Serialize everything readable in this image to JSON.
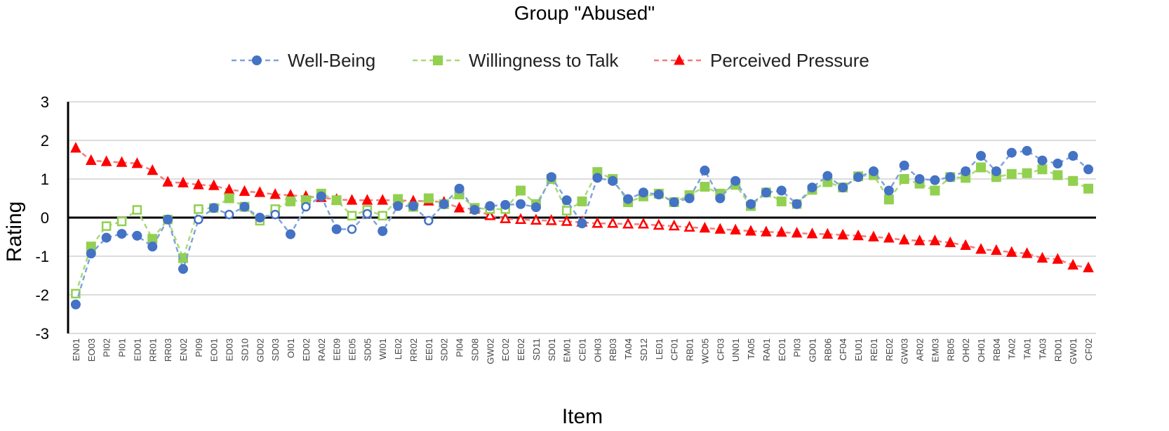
{
  "chart_data": {
    "type": "line",
    "title": "Group \"Abused\"",
    "xlabel": "Item",
    "ylabel": "Rating",
    "ylim": [
      -3,
      3
    ],
    "yticks": [
      3,
      2,
      1,
      0,
      -1,
      -2,
      -3
    ],
    "grid": true,
    "legend": "top-center",
    "categories": [
      "EN01",
      "EO03",
      "PI02",
      "PI01",
      "ED01",
      "RR01",
      "RR03",
      "EN02",
      "PI09",
      "EO01",
      "ED03",
      "SD10",
      "GD02",
      "SD03",
      "OI01",
      "ED02",
      "RA02",
      "EE09",
      "EE05",
      "SD05",
      "WI01",
      "LE02",
      "RR02",
      "EE01",
      "SD02",
      "PI04",
      "SD08",
      "GW02",
      "EC02",
      "EE02",
      "SD11",
      "SD01",
      "EM01",
      "CE01",
      "OH03",
      "RB03",
      "TA04",
      "SD12",
      "LE01",
      "CF01",
      "RB01",
      "WC05",
      "CF03",
      "UN01",
      "TA05",
      "RA01",
      "EC01",
      "PI03",
      "GD01",
      "RB06",
      "CF04",
      "EU01",
      "RE01",
      "RE02",
      "GW03",
      "AR02",
      "EM03",
      "RB05",
      "OH02",
      "OH01",
      "RB04",
      "TA02",
      "TA01",
      "TA03",
      "RD01",
      "GW01",
      "CF02"
    ],
    "series": [
      {
        "name": "Well-Being",
        "color": "#4472C4",
        "marker": "circle",
        "values": [
          -2.25,
          -0.93,
          -0.52,
          -0.42,
          -0.47,
          -0.75,
          -0.05,
          -1.33,
          -0.05,
          0.25,
          0.08,
          0.28,
          0.0,
          0.08,
          -0.43,
          0.28,
          0.55,
          -0.3,
          -0.3,
          0.1,
          -0.35,
          0.3,
          0.3,
          -0.08,
          0.35,
          0.75,
          0.2,
          0.3,
          0.33,
          0.35,
          0.27,
          1.05,
          0.45,
          -0.15,
          1.03,
          0.95,
          0.48,
          0.65,
          0.6,
          0.4,
          0.5,
          1.22,
          0.5,
          0.95,
          0.35,
          0.65,
          0.7,
          0.35,
          0.78,
          1.08,
          0.78,
          1.05,
          1.2,
          0.7,
          1.35,
          1.0,
          0.97,
          1.05,
          1.2,
          1.6,
          1.2,
          1.68,
          1.73,
          1.48,
          1.4,
          1.6,
          1.25
        ],
        "hollow": [
          false,
          false,
          false,
          false,
          false,
          false,
          false,
          false,
          true,
          false,
          true,
          false,
          false,
          true,
          false,
          true,
          false,
          false,
          true,
          true,
          false,
          false,
          false,
          true,
          false,
          false,
          false,
          false,
          false,
          false,
          false,
          false,
          false,
          false,
          false,
          false,
          false,
          false,
          false,
          false,
          false,
          false,
          false,
          false,
          false,
          false,
          false,
          false,
          false,
          false,
          false,
          false,
          false,
          false,
          false,
          false,
          false,
          false,
          false,
          false,
          false,
          false,
          false,
          false,
          false,
          false,
          false
        ]
      },
      {
        "name": "Willingness to Talk",
        "color": "#92D050",
        "marker": "square",
        "values": [
          -1.97,
          -0.75,
          -0.22,
          -0.1,
          0.2,
          -0.55,
          -0.05,
          -1.05,
          0.22,
          0.25,
          0.5,
          0.28,
          -0.08,
          0.22,
          0.42,
          0.45,
          0.62,
          0.45,
          0.05,
          0.2,
          0.05,
          0.48,
          0.28,
          0.5,
          0.35,
          0.6,
          0.25,
          0.22,
          0.22,
          0.7,
          0.35,
          1.0,
          0.18,
          0.42,
          1.18,
          1.0,
          0.4,
          0.55,
          0.62,
          0.4,
          0.58,
          0.8,
          0.62,
          0.85,
          0.3,
          0.65,
          0.42,
          0.35,
          0.72,
          0.92,
          0.78,
          1.07,
          1.1,
          0.47,
          1.0,
          0.88,
          0.7,
          1.05,
          1.03,
          1.3,
          1.05,
          1.13,
          1.15,
          1.25,
          1.1,
          0.95,
          0.75
        ],
        "hollow": [
          true,
          false,
          true,
          true,
          true,
          false,
          true,
          false,
          true,
          true,
          false,
          false,
          true,
          true,
          false,
          false,
          false,
          false,
          true,
          true,
          true,
          false,
          false,
          false,
          false,
          false,
          false,
          true,
          true,
          false,
          false,
          false,
          true,
          false,
          false,
          false,
          false,
          false,
          false,
          false,
          false,
          false,
          false,
          false,
          false,
          false,
          false,
          true,
          false,
          false,
          false,
          false,
          false,
          false,
          false,
          false,
          false,
          false,
          false,
          false,
          false,
          false,
          false,
          false,
          false,
          false,
          false
        ]
      },
      {
        "name": "Perceived Pressure",
        "color": "#FF0000",
        "marker": "triangle",
        "values": [
          1.8,
          1.48,
          1.45,
          1.43,
          1.4,
          1.22,
          0.92,
          0.9,
          0.85,
          0.83,
          0.72,
          0.68,
          0.65,
          0.6,
          0.58,
          0.55,
          0.52,
          0.47,
          0.45,
          0.45,
          0.45,
          0.45,
          0.43,
          0.43,
          0.4,
          0.25,
          0.22,
          0.05,
          -0.03,
          -0.05,
          -0.07,
          -0.08,
          -0.1,
          -0.12,
          -0.15,
          -0.15,
          -0.17,
          -0.17,
          -0.2,
          -0.22,
          -0.25,
          -0.27,
          -0.3,
          -0.32,
          -0.35,
          -0.37,
          -0.38,
          -0.4,
          -0.42,
          -0.43,
          -0.45,
          -0.47,
          -0.5,
          -0.53,
          -0.58,
          -0.6,
          -0.6,
          -0.65,
          -0.72,
          -0.82,
          -0.85,
          -0.9,
          -0.93,
          -1.05,
          -1.08,
          -1.23,
          -1.3
        ],
        "hollow": [
          false,
          false,
          false,
          false,
          false,
          false,
          false,
          false,
          false,
          false,
          false,
          false,
          false,
          false,
          false,
          false,
          false,
          false,
          false,
          false,
          false,
          false,
          false,
          false,
          false,
          false,
          false,
          true,
          true,
          true,
          true,
          true,
          true,
          true,
          true,
          true,
          true,
          true,
          true,
          true,
          true,
          false,
          false,
          false,
          false,
          false,
          false,
          false,
          false,
          false,
          false,
          false,
          false,
          false,
          false,
          false,
          false,
          false,
          false,
          false,
          false,
          false,
          false,
          false,
          false,
          false,
          false
        ]
      }
    ]
  }
}
